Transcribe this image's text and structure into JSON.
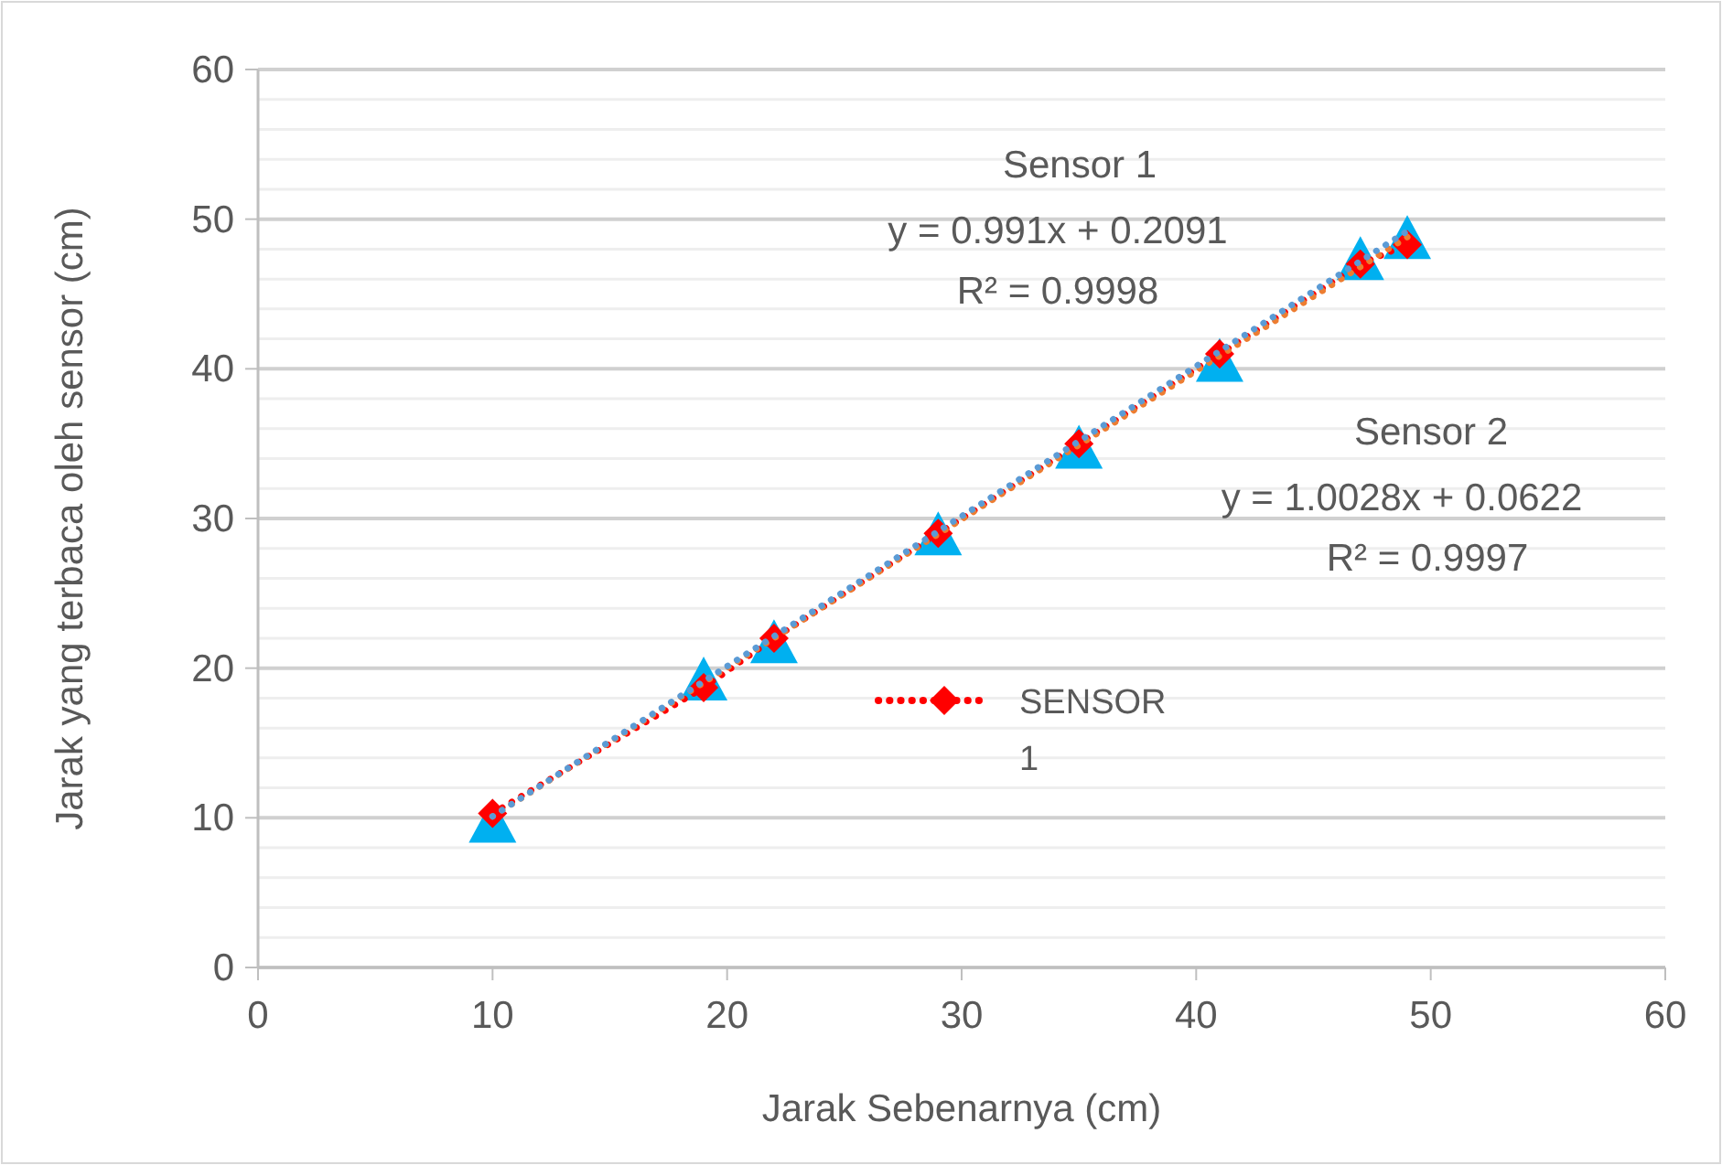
{
  "chart_data": {
    "type": "scatter",
    "xlabel": "Jarak Sebenarnya (cm)",
    "ylabel": "Jarak yang terbaca oleh sensor (cm)",
    "xlim": [
      0,
      60
    ],
    "xticks": [
      0,
      10,
      20,
      30,
      40,
      50,
      60
    ],
    "ylim": [
      0,
      60
    ],
    "yticks": [
      0,
      {
        "value": 2,
        "label": null
      },
      {
        "value": 4,
        "label": null
      },
      {
        "value": 6,
        "label": null
      },
      {
        "value": 8,
        "label": null
      },
      10,
      {
        "value": 12,
        "label": null
      },
      {
        "value": 14,
        "label": null
      },
      {
        "value": 16,
        "label": null
      },
      {
        "value": 18,
        "label": null
      },
      20,
      {
        "value": 22,
        "label": null
      },
      {
        "value": 24,
        "label": null
      },
      {
        "value": 26,
        "label": null
      },
      {
        "value": 28,
        "label": null
      },
      30,
      {
        "value": 32,
        "label": null
      },
      {
        "value": 34,
        "label": null
      },
      {
        "value": 36,
        "label": null
      },
      {
        "value": 38,
        "label": null
      },
      40,
      {
        "value": 42,
        "label": null
      },
      {
        "value": 44,
        "label": null
      },
      {
        "value": 46,
        "label": null
      },
      {
        "value": 48,
        "label": null
      },
      50,
      {
        "value": 52,
        "label": null
      },
      {
        "value": 54,
        "label": null
      },
      {
        "value": 56,
        "label": null
      },
      {
        "value": 58,
        "label": null
      },
      60
    ],
    "grid": "y",
    "legend": "center",
    "series": [
      {
        "name": "SENSOR 1",
        "type": "line",
        "color": "#ff0000",
        "marker": "diamond",
        "line_style": "dotted",
        "x": [
          10,
          19,
          22,
          29,
          35,
          41,
          47,
          49
        ],
        "values": [
          10.3,
          18.7,
          22,
          29,
          35,
          41,
          47,
          48.3
        ]
      },
      {
        "color": "#00b0f0",
        "marker": "triangle",
        "x": [
          10,
          19,
          22,
          29,
          35,
          41,
          47,
          49
        ],
        "values": [
          9.8,
          19.3,
          21.8,
          29,
          34.8,
          40.6,
          47.4,
          48.8
        ]
      },
      {
        "type": "line",
        "color": "#ed7d31",
        "marker": "none",
        "line_style": "dotted",
        "x": [
          10,
          49
        ],
        "values": [
          10.1,
          48.8
        ]
      },
      {
        "type": "line",
        "color": "#5b9bd5",
        "marker": "none",
        "line_style": "dotted",
        "x": [
          10,
          49
        ],
        "values": [
          10.1,
          49.2
        ]
      }
    ],
    "annotations": [
      "Sensor 1",
      "y = 0.991x + 0.2091",
      "R² = 0.9998",
      "Sensor 2",
      "y = 1.0028x + 0.0622",
      "R² = 0.9997"
    ]
  }
}
